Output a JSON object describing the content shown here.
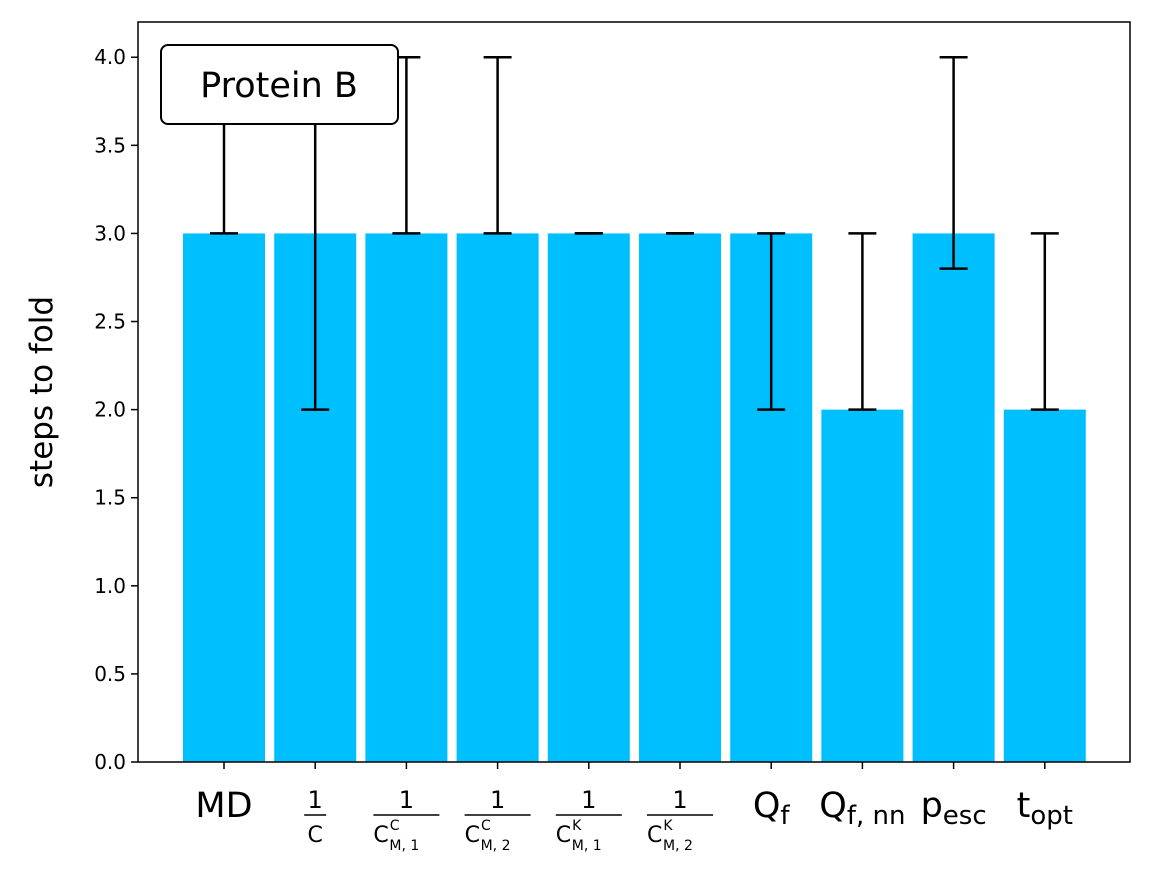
{
  "chart_data": {
    "type": "bar",
    "title": "",
    "xlabel": "",
    "ylabel": "steps to fold",
    "ylim": [
      0,
      4.2
    ],
    "yticks": [
      "0.0",
      "0.5",
      "1.0",
      "1.5",
      "2.0",
      "2.5",
      "3.0",
      "3.5",
      "4.0"
    ],
    "grid": false,
    "bar_color": "#00BFFF",
    "annotation": "Protein B",
    "categories": [
      {
        "kind": "text",
        "base": "MD",
        "sub": ""
      },
      {
        "kind": "frac",
        "base": "C",
        "sup": "",
        "sub": ""
      },
      {
        "kind": "frac",
        "base": "C",
        "sup": "C",
        "sub": "M, 1"
      },
      {
        "kind": "frac",
        "base": "C",
        "sup": "C",
        "sub": "M, 2"
      },
      {
        "kind": "frac",
        "base": "C",
        "sup": "K",
        "sub": "M, 1"
      },
      {
        "kind": "frac",
        "base": "C",
        "sup": "K",
        "sub": "M, 2"
      },
      {
        "kind": "text",
        "base": "Q",
        "sub": "f"
      },
      {
        "kind": "text",
        "base": "Q",
        "sub": "f, nn"
      },
      {
        "kind": "text",
        "base": "p",
        "sub": "esc"
      },
      {
        "kind": "text",
        "base": "t",
        "sub": "opt"
      }
    ],
    "frac_numerator": "1",
    "values": [
      3,
      3,
      3,
      3,
      3,
      3,
      3,
      2,
      3,
      2
    ],
    "error_low": [
      3,
      2,
      3,
      3,
      3,
      3,
      2,
      2,
      2.8,
      2
    ],
    "error_high": [
      4,
      4,
      4,
      4,
      3,
      3,
      3,
      3,
      4,
      3
    ]
  }
}
